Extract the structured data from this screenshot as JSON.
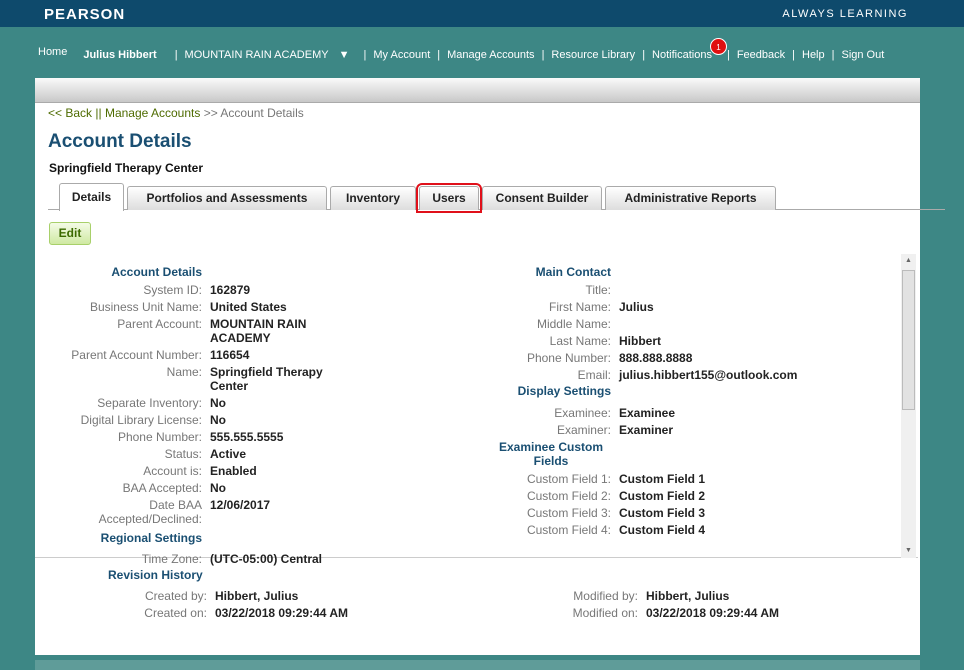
{
  "header": {
    "logo": "PEARSON",
    "tagline": "ALWAYS LEARNING",
    "brand_color": "#0e4a6c",
    "bg_color": "#3d8785"
  },
  "nav": {
    "home": "Home",
    "user": "Julius Hibbert",
    "org": "MOUNTAIN RAIN ACADEMY",
    "my_account": "My Account",
    "manage_accounts": "Manage Accounts",
    "resource_library": "Resource Library",
    "notifications": "Notifications",
    "notification_count": "1",
    "feedback": "Feedback",
    "help": "Help",
    "sign_out": "Sign Out"
  },
  "breadcrumb": {
    "back": "<< Back",
    "sep": "||",
    "manage": "Manage Accounts",
    "arrow": ">>",
    "current": "Account Details"
  },
  "page": {
    "title": "Account Details",
    "subtitle": "Springfield Therapy Center",
    "edit": "Edit"
  },
  "tabs": [
    {
      "label": "Details",
      "active": true
    },
    {
      "label": "Portfolios and Assessments"
    },
    {
      "label": "Inventory"
    },
    {
      "label": "Users",
      "highlighted": true
    },
    {
      "label": "Consent Builder"
    },
    {
      "label": "Administrative Reports"
    }
  ],
  "account": {
    "heading": "Account Details",
    "rows": [
      {
        "label": "System ID:",
        "value": "162879"
      },
      {
        "label": "Business Unit Name:",
        "value": "United States"
      },
      {
        "label": "Parent Account:",
        "value": "MOUNTAIN RAIN ACADEMY"
      },
      {
        "label": "Parent Account Number:",
        "value": "116654"
      },
      {
        "label": "Name:",
        "value": "Springfield Therapy Center"
      },
      {
        "label": "Separate Inventory:",
        "value": "No"
      },
      {
        "label": "Digital Library License:",
        "value": "No"
      },
      {
        "label": "Phone Number:",
        "value": "555.555.5555"
      },
      {
        "label": "Status:",
        "value": "Active"
      },
      {
        "label": "Account is:",
        "value": "Enabled"
      },
      {
        "label": "BAA Accepted:",
        "value": "No"
      },
      {
        "label": "Date BAA Accepted/Declined:",
        "value": "12/06/2017"
      }
    ],
    "regional_heading": "Regional Settings",
    "regional_rows": [
      {
        "label": "Time Zone:",
        "value": "(UTC-05:00) Central"
      }
    ]
  },
  "contact": {
    "heading": "Main Contact",
    "rows": [
      {
        "label": "Title:",
        "value": ""
      },
      {
        "label": "First Name:",
        "value": "Julius"
      },
      {
        "label": "Middle Name:",
        "value": ""
      },
      {
        "label": "Last Name:",
        "value": "Hibbert"
      },
      {
        "label": "Phone Number:",
        "value": "888.888.8888"
      },
      {
        "label": "Email:",
        "value": "julius.hibbert155@outlook.com"
      }
    ],
    "display_heading": "Display Settings",
    "display_rows": [
      {
        "label": "Examinee:",
        "value": "Examinee"
      },
      {
        "label": "Examiner:",
        "value": "Examiner"
      }
    ],
    "custom_heading": "Examinee Custom Fields",
    "custom_rows": [
      {
        "label": "Custom Field 1:",
        "value": "Custom Field 1"
      },
      {
        "label": "Custom Field 2:",
        "value": "Custom Field 2"
      },
      {
        "label": "Custom Field 3:",
        "value": "Custom Field 3"
      },
      {
        "label": "Custom Field 4:",
        "value": "Custom Field 4"
      }
    ]
  },
  "revision": {
    "heading": "Revision History",
    "created_by_label": "Created by:",
    "created_by": "Hibbert, Julius",
    "created_on_label": "Created on:",
    "created_on": "03/22/2018 09:29:44 AM",
    "modified_by_label": "Modified by:",
    "modified_by": "Hibbert, Julius",
    "modified_on_label": "Modified on:",
    "modified_on": "03/22/2018 09:29:44 AM"
  }
}
